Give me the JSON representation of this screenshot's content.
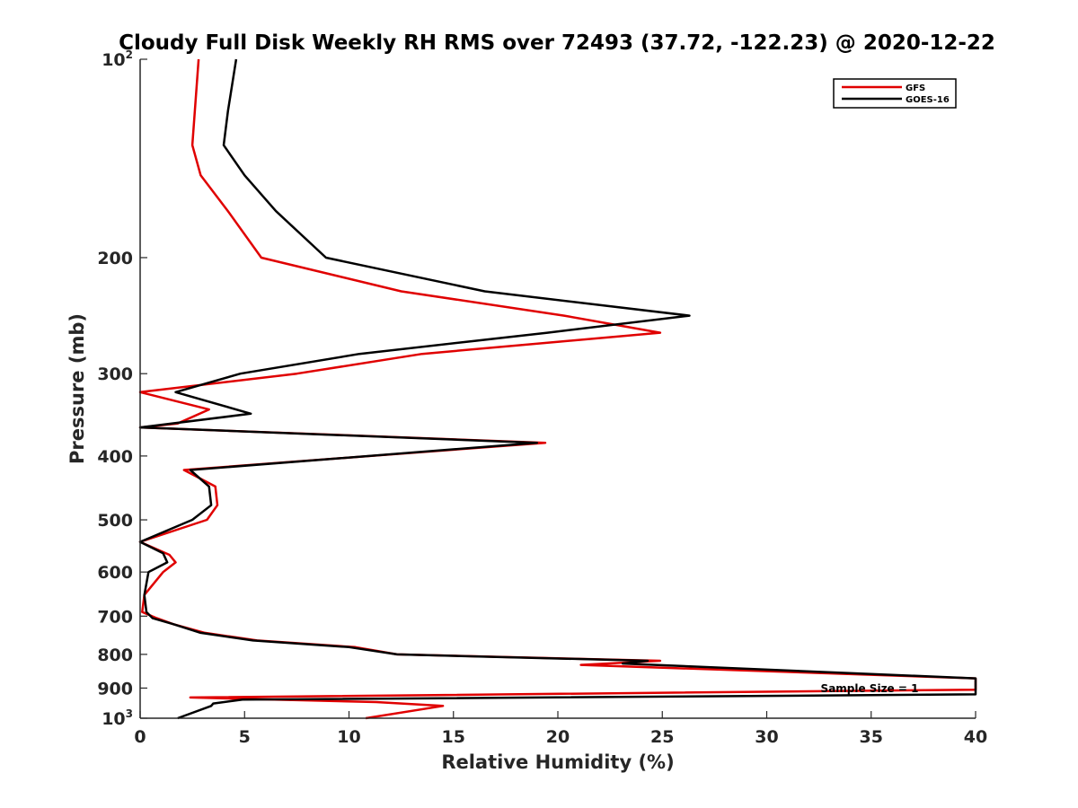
{
  "chart_data": {
    "type": "line",
    "title": "Cloudy Full Disk Weekly RH RMS over 72493 (37.72, -122.23) @ 2020-12-22",
    "xlabel": "Relative Humidity (%)",
    "ylabel": "Pressure (mb)",
    "xlim": [
      0,
      40
    ],
    "ylim": [
      100,
      1000
    ],
    "yscale": "log",
    "y_reversed": true,
    "xticks": [
      {
        "value": 0,
        "label": "0"
      },
      {
        "value": 5,
        "label": "5"
      },
      {
        "value": 10,
        "label": "10"
      },
      {
        "value": 15,
        "label": "15"
      },
      {
        "value": 20,
        "label": "20"
      },
      {
        "value": 25,
        "label": "25"
      },
      {
        "value": 30,
        "label": "30"
      },
      {
        "value": 35,
        "label": "35"
      },
      {
        "value": 40,
        "label": "40"
      }
    ],
    "yticks": [
      {
        "value": 100,
        "label": "10",
        "sup": "2"
      },
      {
        "value": 200,
        "label": "200"
      },
      {
        "value": 300,
        "label": "300"
      },
      {
        "value": 400,
        "label": "400"
      },
      {
        "value": 500,
        "label": "500"
      },
      {
        "value": 600,
        "label": "600"
      },
      {
        "value": 700,
        "label": "700"
      },
      {
        "value": 800,
        "label": "800"
      },
      {
        "value": 900,
        "label": "900"
      },
      {
        "value": 1000,
        "label": "10",
        "sup": "3"
      }
    ],
    "legend": {
      "position": "top-right",
      "entries": [
        "GFS",
        "GOES-16"
      ]
    },
    "annotation": "Sample Size = 1",
    "series": [
      {
        "name": "GFS",
        "color": "#e00000",
        "points": [
          [
            2.8,
            100
          ],
          [
            2.5,
            135
          ],
          [
            2.9,
            150
          ],
          [
            4.2,
            170
          ],
          [
            5.8,
            200
          ],
          [
            12.5,
            225
          ],
          [
            20.3,
            245
          ],
          [
            24.9,
            260
          ],
          [
            13.5,
            280
          ],
          [
            7.5,
            300
          ],
          [
            0,
            320
          ],
          [
            3.3,
            340
          ],
          [
            1.8,
            357
          ],
          [
            0,
            362
          ],
          [
            19.4,
            382
          ],
          [
            2.1,
            420
          ],
          [
            3.6,
            445
          ],
          [
            3.7,
            475
          ],
          [
            3.2,
            500
          ],
          [
            0,
            540
          ],
          [
            1.4,
            565
          ],
          [
            1.7,
            580
          ],
          [
            1.1,
            600
          ],
          [
            0.2,
            650
          ],
          [
            0.1,
            690
          ],
          [
            0.8,
            705
          ],
          [
            1.6,
            720
          ],
          [
            3.1,
            742
          ],
          [
            5.6,
            762
          ],
          [
            10.3,
            780
          ],
          [
            12.3,
            800
          ],
          [
            24.9,
            818
          ],
          [
            21.1,
            830
          ],
          [
            40,
            870
          ],
          [
            40,
            905
          ],
          [
            2.4,
            930
          ],
          [
            11.3,
            945
          ],
          [
            14.5,
            958
          ],
          [
            10.8,
            1000
          ]
        ]
      },
      {
        "name": "GOES-16",
        "color": "#000000",
        "points": [
          [
            4.6,
            100
          ],
          [
            4.2,
            120
          ],
          [
            4.0,
            135
          ],
          [
            5.0,
            150
          ],
          [
            6.5,
            170
          ],
          [
            8.9,
            200
          ],
          [
            16.5,
            225
          ],
          [
            26.3,
            245
          ],
          [
            19.5,
            260
          ],
          [
            10.5,
            280
          ],
          [
            4.8,
            300
          ],
          [
            1.7,
            320
          ],
          [
            5.3,
            345
          ],
          [
            0,
            362
          ],
          [
            19.0,
            382
          ],
          [
            2.4,
            420
          ],
          [
            3.3,
            445
          ],
          [
            3.4,
            475
          ],
          [
            2.5,
            500
          ],
          [
            0,
            540
          ],
          [
            1.1,
            562
          ],
          [
            1.3,
            580
          ],
          [
            0.4,
            600
          ],
          [
            0.2,
            650
          ],
          [
            0.3,
            690
          ],
          [
            0.6,
            705
          ],
          [
            1.6,
            720
          ],
          [
            2.9,
            742
          ],
          [
            5.4,
            762
          ],
          [
            10.0,
            780
          ],
          [
            12.3,
            800
          ],
          [
            24.3,
            818
          ],
          [
            23.1,
            826
          ],
          [
            40,
            870
          ],
          [
            40,
            920
          ],
          [
            4.9,
            937
          ],
          [
            3.5,
            950
          ],
          [
            3.4,
            958
          ],
          [
            1.8,
            1000
          ]
        ]
      }
    ]
  }
}
